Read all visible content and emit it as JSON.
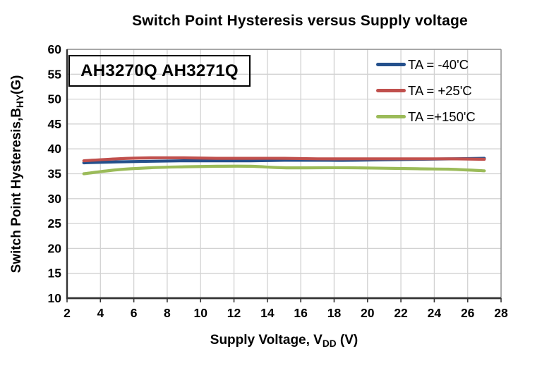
{
  "chart_data": {
    "type": "line",
    "title": "Switch Point Hysteresis versus Supply voltage",
    "annotation": "AH3270Q AH3271Q",
    "x_axis": {
      "label_prefix": "Supply Voltage, V",
      "label_sub": "DD",
      "label_suffix": " (V)",
      "min": 2,
      "max": 28,
      "ticks": [
        2,
        4,
        6,
        8,
        10,
        12,
        14,
        16,
        18,
        20,
        22,
        24,
        26,
        28
      ]
    },
    "y_axis": {
      "label_prefix": "Switch Point Hysteresis,B",
      "label_sub": "HY",
      "label_suffix": "(G)",
      "min": 10,
      "max": 60,
      "ticks": [
        10,
        15,
        20,
        25,
        30,
        35,
        40,
        45,
        50,
        55,
        60
      ]
    },
    "grid": true,
    "legend_position": "top-right-inside",
    "x": [
      3,
      5,
      7,
      9,
      11,
      13,
      15,
      17,
      19,
      21,
      23,
      25,
      27
    ],
    "series": [
      {
        "name": "TA = -40'C",
        "color": "#24508C",
        "values": [
          37.2,
          37.4,
          37.5,
          37.6,
          37.6,
          37.6,
          37.7,
          37.7,
          37.7,
          37.8,
          37.9,
          38.0,
          38.1
        ]
      },
      {
        "name": "TA = +25'C",
        "color": "#C0504D",
        "values": [
          37.6,
          38.0,
          38.2,
          38.2,
          38.1,
          38.1,
          38.1,
          38.0,
          38.0,
          38.0,
          38.0,
          38.0,
          37.9
        ]
      },
      {
        "name": "TA =+150'C",
        "color": "#9BBB59",
        "values": [
          35.0,
          35.8,
          36.2,
          36.4,
          36.5,
          36.5,
          36.2,
          36.2,
          36.2,
          36.1,
          36.0,
          35.9,
          35.6
        ]
      }
    ]
  },
  "colors": {
    "gridline": "#d2d2d2",
    "axis": "#333333",
    "border": "#8f8f8f",
    "background": "#ffffff",
    "text": "#000000"
  }
}
